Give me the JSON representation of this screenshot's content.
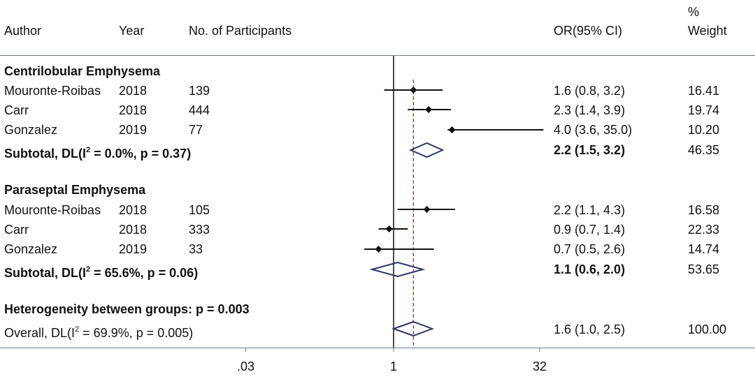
{
  "chart_data": {
    "type": "forest",
    "scale": "log",
    "x_ticks": [
      {
        "value": 0.03,
        "label": ".03"
      },
      {
        "value": 1,
        "label": "1"
      },
      {
        "value": 32,
        "label": "32"
      }
    ],
    "x_range": [
      0.012,
      300
    ],
    "null_line": 1,
    "overall_line": 1.6,
    "columns": {
      "author": "Author",
      "year": "Year",
      "participants": "No. of Participants",
      "or": "OR(95% CI)",
      "weight_line1": "%",
      "weight_line2": "Weight"
    },
    "groups": [
      {
        "title": "Centrilobular Emphysema",
        "studies": [
          {
            "author": "Mouronte-Roibas",
            "year": "2018",
            "n": "139",
            "or": 1.6,
            "lo": 0.8,
            "hi": 3.2,
            "or_text": "1.6 (0.8, 3.2)",
            "weight": "16.41"
          },
          {
            "author": "Carr",
            "year": "2018",
            "n": "444",
            "or": 2.3,
            "lo": 1.4,
            "hi": 3.9,
            "or_text": "2.3 (1.4, 3.9)",
            "weight": "19.74"
          },
          {
            "author": "Gonzalez",
            "year": "2019",
            "n": "77",
            "or": 4.0,
            "lo": 3.6,
            "hi": 35.0,
            "or_text": "4.0 (3.6, 35.0)",
            "weight": "10.20"
          }
        ],
        "subtotal": {
          "prefix": "Subtotal, DL(I",
          "sup": "2",
          "suffix": " = 0.0%, p = 0.37)",
          "or": 2.2,
          "lo": 1.5,
          "hi": 3.2,
          "or_text": "2.2 (1.5, 3.2)",
          "weight": "46.35"
        }
      },
      {
        "title": "Paraseptal Emphysema",
        "studies": [
          {
            "author": "Mouronte-Roibas",
            "year": "2018",
            "n": "105",
            "or": 2.2,
            "lo": 1.1,
            "hi": 4.3,
            "or_text": "2.2 (1.1, 4.3)",
            "weight": "16.58"
          },
          {
            "author": "Carr",
            "year": "2018",
            "n": "333",
            "or": 0.9,
            "lo": 0.7,
            "hi": 1.4,
            "or_text": "0.9 (0.7, 1.4)",
            "weight": "22.33"
          },
          {
            "author": "Gonzalez",
            "year": "2019",
            "n": "33",
            "or": 0.7,
            "lo": 0.5,
            "hi": 2.6,
            "or_text": "0.7 (0.5, 2.6)",
            "weight": "14.74"
          }
        ],
        "subtotal": {
          "prefix": "Subtotal, DL(I",
          "sup": "2",
          "suffix": " = 65.6%, p = 0.06)",
          "or": 1.1,
          "lo": 0.6,
          "hi": 2.0,
          "or_text": "1.1 (0.6, 2.0)",
          "weight": "53.65"
        }
      }
    ],
    "heterogeneity": "Heterogeneity between groups: p = 0.003",
    "overall": {
      "prefix": "Overall, DL(I",
      "sup": "2",
      "suffix": " = 69.9%, p = 0.005)",
      "or": 1.6,
      "lo": 1.0,
      "hi": 2.5,
      "or_text": "1.6 (1.0, 2.5)",
      "weight": "100.00"
    },
    "colors": {
      "line": "#111111",
      "diamond": "#2e3566",
      "ref": "#8b2e2e",
      "rule": "#6a7d8f"
    }
  }
}
